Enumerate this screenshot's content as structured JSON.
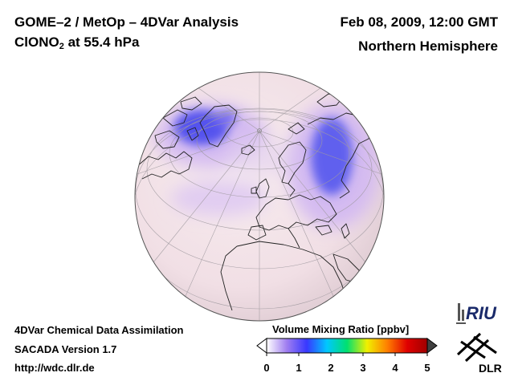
{
  "header": {
    "title_part1": "GOME–2 / MetOp – 4DVar Analysis",
    "species_main": "ClONO",
    "species_sub": "2",
    "species_rest": " at 55.4 hPa",
    "date": "Feb 08, 2009, 12:00 GMT",
    "region": "Northern Hemisphere"
  },
  "footer": {
    "line1": "4DVar Chemical Data Assimilation",
    "line2": "SACADA Version 1.7",
    "line3": "http://wdc.dlr.de"
  },
  "colorbar": {
    "title": "Volume Mixing Ratio [ppbv]",
    "min": 0,
    "max": 5,
    "ticks": [
      "0",
      "1",
      "2",
      "3",
      "4",
      "5"
    ],
    "colors": [
      "#ffffff",
      "#a07ef0",
      "#3838ff",
      "#00c8ff",
      "#00e070",
      "#f0f000",
      "#ff8000",
      "#e00000",
      "#a00000"
    ],
    "left_arrow_color": "#ffffff",
    "right_arrow_color": "#404040"
  },
  "map": {
    "projection": "orthographic",
    "hemisphere": "Northern Hemisphere",
    "background_color": "#f3e2e8",
    "enhanced_color": "#c9a9ee",
    "max_color": "#5a55ee"
  },
  "logos": {
    "riu": "RIU",
    "dlr": "DLR"
  }
}
